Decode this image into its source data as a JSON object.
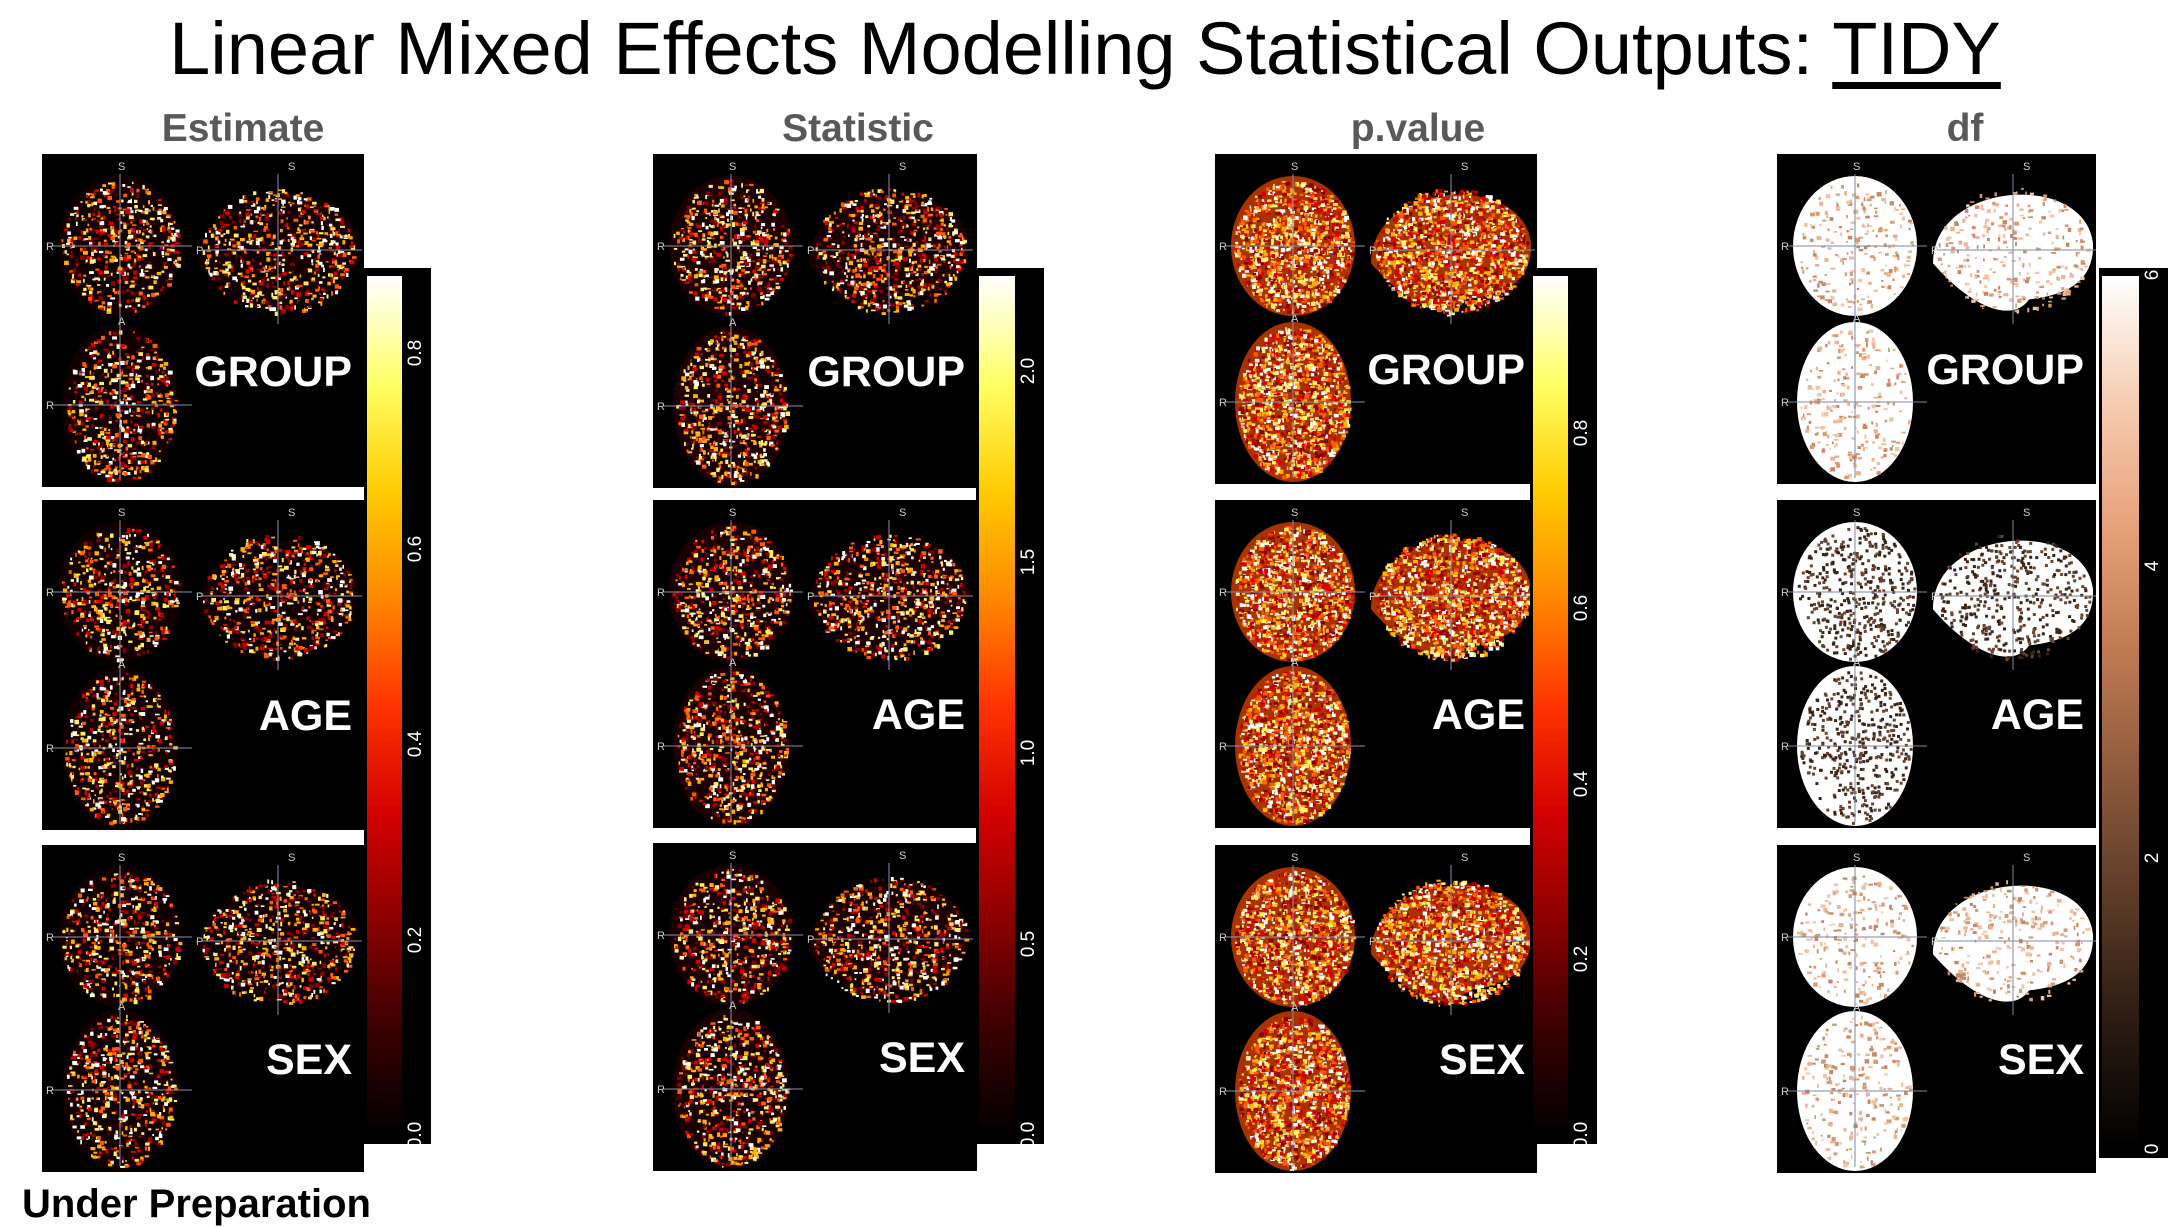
{
  "title": {
    "prefix": "Linear Mixed Effects Modelling Statistical Outputs: ",
    "underlined": "TIDY"
  },
  "footer": "Under Preparation",
  "orientation_letters": {
    "superior": "S",
    "right": "R",
    "posterior": "P",
    "anterior": "A"
  },
  "columns": [
    {
      "title": "Estimate",
      "colormap": "hot",
      "ticks": [
        "0.0",
        "0.2",
        "0.4",
        "0.6",
        "0.8"
      ],
      "max": 0.88,
      "rows": [
        "GROUP",
        "AGE",
        "SEX"
      ]
    },
    {
      "title": "Statistic",
      "colormap": "hot",
      "ticks": [
        "0.0",
        "0.5",
        "1.0",
        "1.5",
        "2.0"
      ],
      "max": 2.25,
      "rows": [
        "GROUP",
        "AGE",
        "SEX"
      ]
    },
    {
      "title": "p.value",
      "colormap": "hot",
      "ticks": [
        "0.0",
        "0.2",
        "0.4",
        "0.6",
        "0.8"
      ],
      "max": 0.98,
      "rows": [
        "GROUP",
        "AGE",
        "SEX"
      ]
    },
    {
      "title": "df",
      "colormap": "copper",
      "ticks": [
        "0",
        "2",
        "4",
        "6"
      ],
      "max": 6.0,
      "rows": [
        "GROUP",
        "AGE",
        "SEX"
      ]
    }
  ]
}
